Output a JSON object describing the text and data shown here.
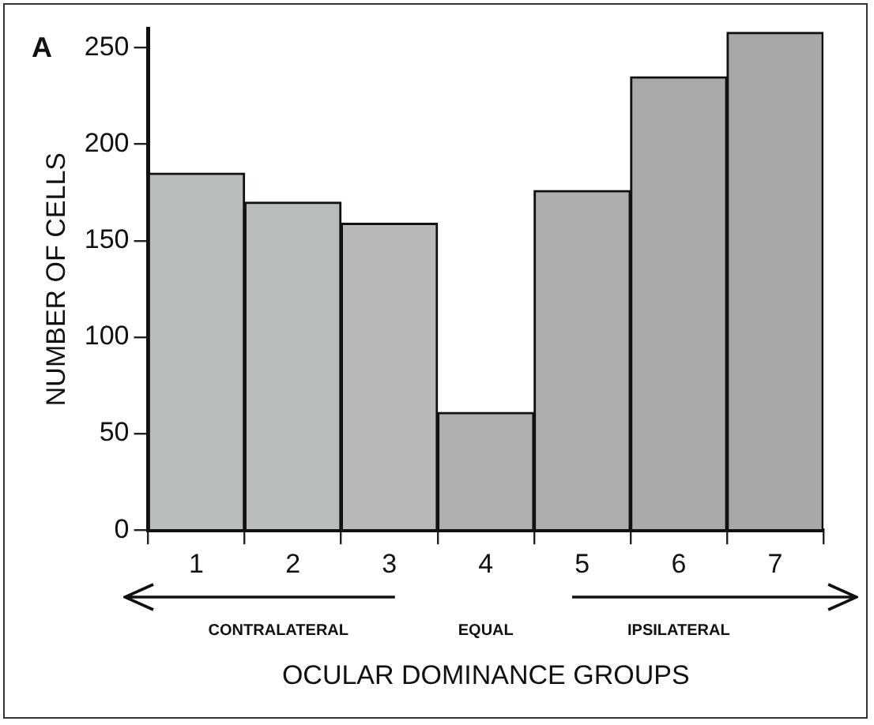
{
  "chart_data": {
    "type": "bar",
    "xlabel": "OCULAR DOMINANCE GROUPS",
    "ylabel": "NUMBER OF CELLS",
    "categories": [
      "1",
      "2",
      "3",
      "4",
      "5",
      "6",
      "7"
    ],
    "values": [
      185,
      170,
      159,
      61,
      176,
      235,
      258
    ],
    "colors": [
      "#b9bdb9",
      "#b9bdb9",
      "#b6b9b6",
      "#aeb0ae",
      "#acaeac",
      "#a9aba9",
      "#a7a9a7"
    ],
    "ylim": [
      0,
      260
    ],
    "yticks": [
      0,
      50,
      100,
      150,
      200,
      250
    ],
    "grid": false,
    "legend": false,
    "annotations": [
      "A",
      "CONTRALATERAL",
      "EQUAL",
      "IPSILATERAL"
    ]
  }
}
